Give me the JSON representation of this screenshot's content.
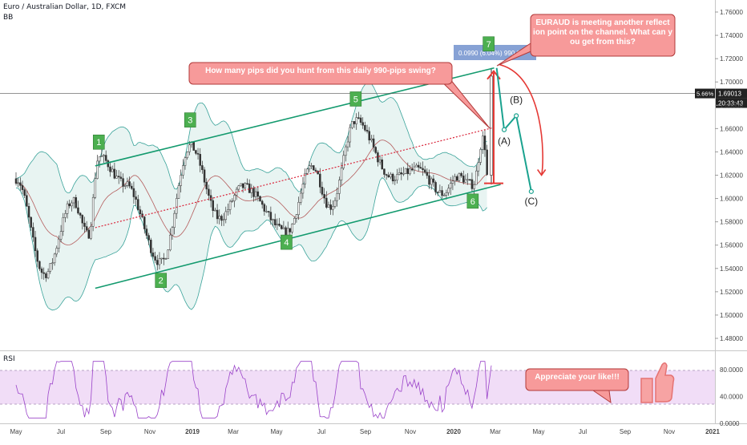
{
  "header": {
    "symbol": "Euro / Australian Dollar, 1D, FXCM",
    "indicator": "BB",
    "rsi_label": "RSI"
  },
  "price_tag": {
    "pct": "5.66%",
    "price": "1.69013",
    "countdown": "20:33:43"
  },
  "measure_label": "0.0990 (6.04%) 990.0",
  "callouts": {
    "question": "How many pips did you hunt from this daily 990-pips swing?",
    "channel": "EURAUD is meeting another reflection point on the channel. What can you get from this?",
    "like": "Appreciate your like!!!"
  },
  "colors": {
    "candle": "#333333",
    "bb_band": "#3aa39a",
    "channel": "#139a6e",
    "midline": "#d9263b",
    "rsi_line": "#9a43c9",
    "rsi_fill": "#f1ddf7",
    "callout_fill": "#f79a9a",
    "callout_border": "#b23a3a",
    "wave_label_fill": "#4caf50",
    "projection": "#1aa28f",
    "arrow_red": "#e53935"
  },
  "wave_labels": [
    "1",
    "2",
    "3",
    "4",
    "5",
    "6",
    "7"
  ],
  "projection_labels": [
    "(A)",
    "(B)",
    "(C)"
  ],
  "chart_data": {
    "type": "candlestick",
    "title": "Euro / Australian Dollar, 1D, FXCM",
    "indicators": [
      "BB",
      "RSI"
    ],
    "x_ticks": [
      "May",
      "Jul",
      "Sep",
      "Nov",
      "2019",
      "Mar",
      "May",
      "Jul",
      "Sep",
      "Nov",
      "2020",
      "Mar",
      "May",
      "Jul",
      "Sep",
      "Nov",
      "2021"
    ],
    "y_ticks": [
      "1.76000",
      "1.74000",
      "1.72000",
      "1.70000",
      "1.68000",
      "1.66000",
      "1.64000",
      "1.62000",
      "1.60000",
      "1.58000",
      "1.56000",
      "1.54000",
      "1.52000",
      "1.50000",
      "1.48000"
    ],
    "rsi_ticks": [
      "80.0000",
      "40.0000",
      "0.0000"
    ],
    "ylim": [
      1.465,
      1.77
    ],
    "rsi_ylim": [
      0,
      100
    ],
    "rsi_band": [
      30,
      70
    ],
    "last_price": 1.69013,
    "channel": {
      "upper": [
        [
          "2018-08-20",
          1.628
        ],
        [
          "2020-03-01",
          1.712
        ]
      ],
      "lower": [
        [
          "2018-08-20",
          1.523
        ],
        [
          "2020-03-10",
          1.612
        ]
      ],
      "middle": [
        [
          "2018-08-20",
          1.575
        ],
        [
          "2020-03-01",
          1.661
        ]
      ]
    },
    "waves": [
      {
        "label": "1",
        "date": "2018-08-25",
        "price": 1.636
      },
      {
        "label": "2",
        "date": "2018-11-20",
        "price": 1.538
      },
      {
        "label": "3",
        "date": "2018-12-31",
        "price": 1.655
      },
      {
        "label": "4",
        "date": "2019-05-15",
        "price": 1.568
      },
      {
        "label": "5",
        "date": "2019-08-20",
        "price": 1.673
      },
      {
        "label": "6",
        "date": "2020-01-31",
        "price": 1.606
      },
      {
        "label": "7",
        "date": "2020-02-29",
        "price": 1.712
      }
    ],
    "projection": [
      {
        "label": "(A)",
        "date": "2020-03-15",
        "price": 1.659
      },
      {
        "label": "(B)",
        "date": "2020-04-01",
        "price": 1.671
      },
      {
        "label": "(C)",
        "date": "2020-04-22",
        "price": 1.606
      }
    ],
    "measure": {
      "from": 1.613,
      "to": 1.712,
      "change": 0.099,
      "pct": 6.04,
      "pips": 990.0
    }
  }
}
